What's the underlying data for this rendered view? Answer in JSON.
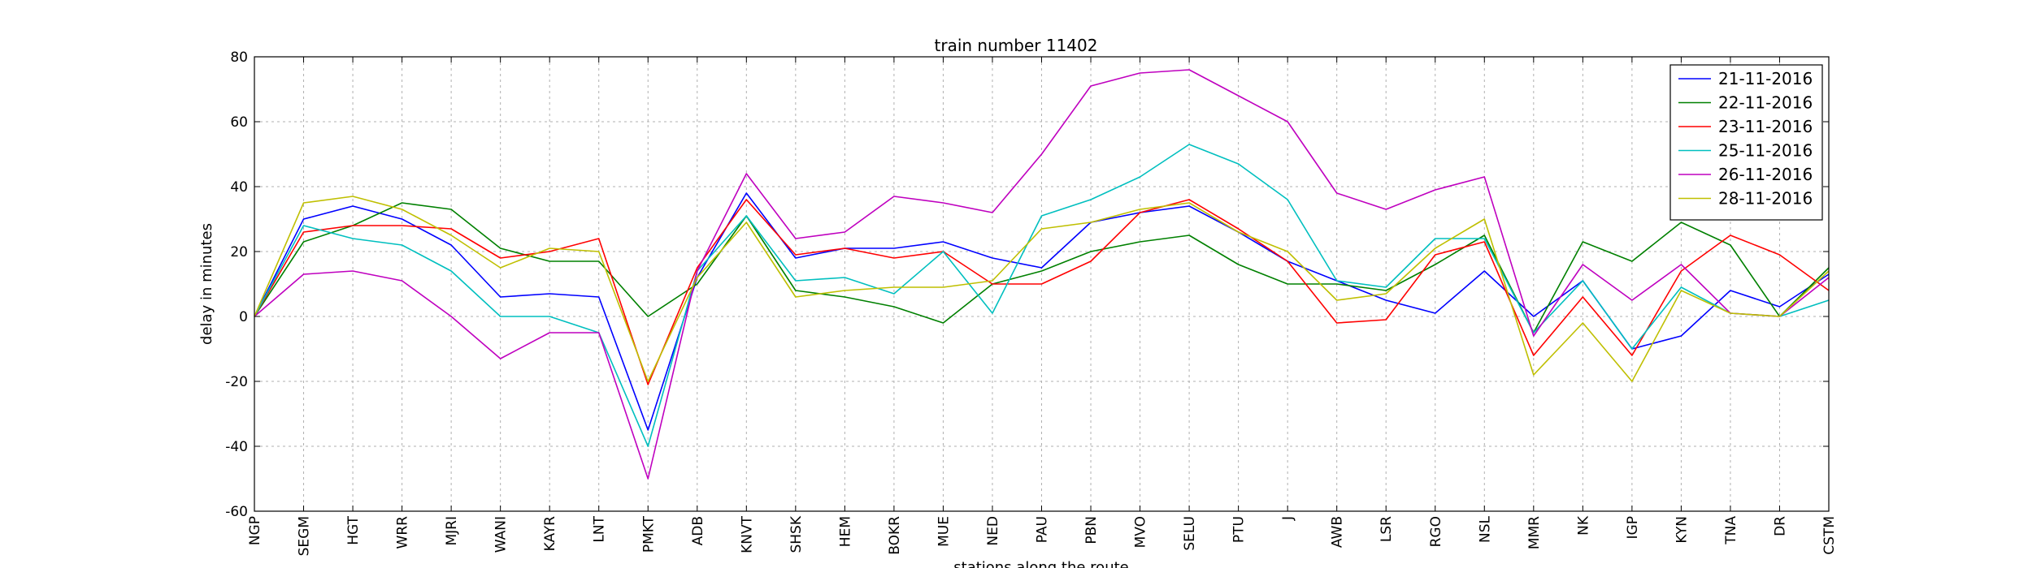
{
  "chart_data": {
    "type": "line",
    "title": "train number 11402",
    "xlabel": "stations along the route",
    "ylabel": "delay in minutes",
    "ylim": [
      -60,
      80
    ],
    "yticks": [
      -60,
      -40,
      -20,
      0,
      20,
      40,
      60,
      80
    ],
    "grid": true,
    "legend_position": "top-right",
    "categories": [
      "NGP",
      "SEGM",
      "HGT",
      "WRR",
      "MJRI",
      "WANI",
      "KAYR",
      "LNT",
      "PMKT",
      "ADB",
      "KNVT",
      "SHSK",
      "HEM",
      "BOKR",
      "MUE",
      "NED",
      "PAU",
      "PBN",
      "MVO",
      "SELU",
      "PTU",
      "J",
      "AWB",
      "LSR",
      "RGO",
      "NSL",
      "MMR",
      "NK",
      "IGP",
      "KYN",
      "TNA",
      "DR",
      "CSTM"
    ],
    "series": [
      {
        "name": "21-11-2016",
        "color": "#0000ff",
        "values": [
          0,
          30,
          34,
          30,
          22,
          6,
          7,
          6,
          -35,
          12,
          38,
          18,
          21,
          21,
          23,
          18,
          15,
          29,
          32,
          34,
          26,
          17,
          11,
          5,
          1,
          14,
          0,
          11,
          -10,
          -6,
          8,
          3,
          13
        ]
      },
      {
        "name": "22-11-2016",
        "color": "#008000",
        "values": [
          0,
          23,
          28,
          35,
          33,
          21,
          17,
          17,
          0,
          10,
          31,
          8,
          6,
          3,
          -2,
          10,
          14,
          20,
          23,
          25,
          16,
          10,
          10,
          8,
          16,
          25,
          -5,
          23,
          17,
          29,
          22,
          0,
          15
        ]
      },
      {
        "name": "23-11-2016",
        "color": "#ff0000",
        "values": [
          0,
          26,
          28,
          28,
          27,
          18,
          20,
          24,
          -21,
          15,
          36,
          19,
          21,
          18,
          20,
          10,
          10,
          17,
          32,
          36,
          27,
          17,
          -2,
          -1,
          19,
          23,
          -12,
          6,
          -12,
          14,
          25,
          19,
          8
        ]
      },
      {
        "name": "25-11-2016",
        "color": "#00bfbf",
        "values": [
          0,
          28,
          24,
          22,
          14,
          0,
          0,
          -5,
          -40,
          14,
          31,
          11,
          12,
          7,
          20,
          1,
          31,
          36,
          43,
          53,
          47,
          36,
          11,
          9,
          24,
          24,
          -5,
          11,
          -10,
          9,
          1,
          0,
          5
        ]
      },
      {
        "name": "26-11-2016",
        "color": "#bf00bf",
        "values": [
          0,
          13,
          14,
          11,
          0,
          -13,
          -5,
          -5,
          -50,
          14,
          44,
          24,
          26,
          37,
          35,
          32,
          50,
          71,
          75,
          76,
          68,
          60,
          38,
          33,
          39,
          43,
          -6,
          16,
          5,
          16,
          1,
          0,
          12
        ]
      },
      {
        "name": "28-11-2016",
        "color": "#bfbf00",
        "values": [
          0,
          35,
          37,
          33,
          25,
          15,
          21,
          20,
          -20,
          12,
          29,
          6,
          8,
          9,
          9,
          11,
          27,
          29,
          33,
          35,
          26,
          20,
          5,
          7,
          21,
          30,
          -18,
          -2,
          -20,
          8,
          1,
          0,
          14
        ]
      }
    ]
  }
}
